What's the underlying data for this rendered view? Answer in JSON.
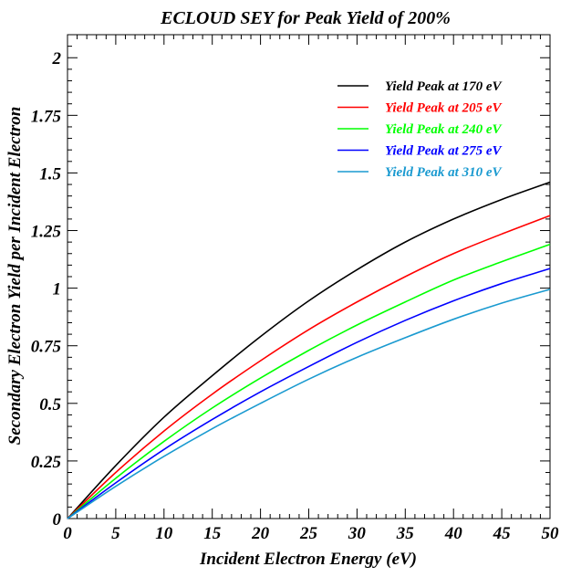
{
  "chart_data": {
    "type": "line",
    "title": "ECLOUD SEY for Peak Yield of 200%",
    "xlabel": "Incident Electron Energy (eV)",
    "ylabel": "Secondary Electron Yield per Incident Electron",
    "xlim": [
      0,
      50
    ],
    "ylim": [
      0,
      2.1
    ],
    "xticks": [
      "0",
      "5",
      "10",
      "15",
      "20",
      "25",
      "30",
      "35",
      "40",
      "45",
      "50"
    ],
    "yticks": [
      "0",
      "0.25",
      "0.5",
      "0.75",
      "1",
      "1.25",
      "1.5",
      "1.75",
      "2"
    ],
    "grid": false,
    "legend_position": "top-right",
    "x": [
      0,
      5,
      10,
      15,
      20,
      25,
      30,
      35,
      40,
      45,
      50
    ],
    "series": [
      {
        "name": "Yield Peak at 170 eV",
        "color": "#000000",
        "values": [
          0,
          0.23,
          0.44,
          0.62,
          0.79,
          0.945,
          1.08,
          1.2,
          1.3,
          1.385,
          1.46
        ]
      },
      {
        "name": "Yield Peak at 205 eV",
        "color": "#ff0000",
        "values": [
          0,
          0.2,
          0.38,
          0.54,
          0.685,
          0.82,
          0.94,
          1.05,
          1.15,
          1.235,
          1.315
        ]
      },
      {
        "name": "Yield Peak at 240 eV",
        "color": "#00ff00",
        "values": [
          0,
          0.175,
          0.335,
          0.48,
          0.61,
          0.73,
          0.84,
          0.94,
          1.035,
          1.115,
          1.19
        ]
      },
      {
        "name": "Yield Peak at 275 eV",
        "color": "#0000ff",
        "values": [
          0,
          0.155,
          0.3,
          0.43,
          0.55,
          0.66,
          0.765,
          0.86,
          0.945,
          1.02,
          1.085
        ]
      },
      {
        "name": "Yield Peak at 310 eV",
        "color": "#1a9ad0",
        "values": [
          0,
          0.14,
          0.27,
          0.39,
          0.5,
          0.605,
          0.7,
          0.785,
          0.865,
          0.935,
          0.995
        ]
      }
    ]
  }
}
